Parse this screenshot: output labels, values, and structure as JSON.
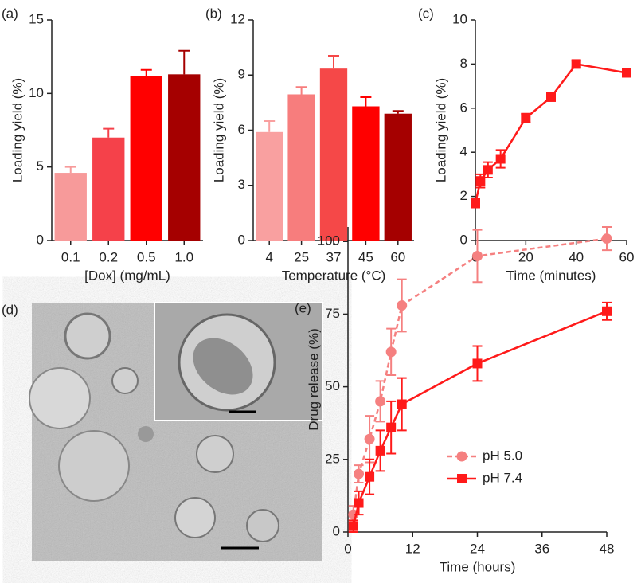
{
  "chart_data": [
    {
      "type": "bar",
      "panel": "(a)",
      "xlabel": "[Dox] (mg/mL)",
      "ylabel": "Loading yield (%)",
      "categories": [
        "0.1",
        "0.2",
        "0.5",
        "1.0"
      ],
      "values": [
        4.6,
        7.0,
        11.2,
        11.3
      ],
      "errors": [
        0.4,
        0.6,
        0.4,
        1.6
      ],
      "colors": [
        "#f79a9a",
        "#f5414a",
        "#ff0000",
        "#a50000"
      ],
      "ylim": [
        0,
        15
      ],
      "yticks": [
        0,
        5,
        10,
        15
      ]
    },
    {
      "type": "bar",
      "panel": "(b)",
      "xlabel": "Temperature (°C)",
      "ylabel": "Loading yield (%)",
      "categories": [
        "4",
        "25",
        "37",
        "45",
        "60"
      ],
      "values": [
        5.9,
        7.95,
        9.35,
        7.3,
        6.9
      ],
      "errors": [
        0.6,
        0.4,
        0.7,
        0.5,
        0.15
      ],
      "colors": [
        "#f9a0a0",
        "#f77d7d",
        "#f54848",
        "#ff0000",
        "#a50000"
      ],
      "ylim": [
        0,
        12
      ],
      "yticks": [
        0,
        3,
        6,
        9,
        12
      ]
    },
    {
      "type": "line",
      "panel": "(c)",
      "xlabel": "Time (minutes)",
      "ylabel": "Loading yield (%)",
      "x": [
        0,
        2,
        5,
        10,
        20,
        30,
        40,
        60
      ],
      "series": [
        {
          "color": "#ff1a1a",
          "marker": "square",
          "linestyle": "solid",
          "values": [
            1.7,
            2.7,
            3.2,
            3.7,
            5.55,
            6.5,
            8.0,
            7.6
          ],
          "errors": [
            0.2,
            0.3,
            0.35,
            0.4,
            0.2,
            0.15,
            0.15,
            0.1
          ]
        }
      ],
      "xlim": [
        0,
        60
      ],
      "xticks": [
        0,
        20,
        40,
        60
      ],
      "ylim": [
        0,
        10
      ],
      "yticks": [
        0,
        2,
        4,
        6,
        8,
        10
      ]
    },
    {
      "type": "image",
      "panel": "(d)"
    },
    {
      "type": "line",
      "panel": "(e)",
      "xlabel": "Time (hours)",
      "ylabel": "Drug release (%)",
      "legend": "lower right",
      "x": [
        1,
        2,
        4,
        6,
        8,
        10,
        24,
        48
      ],
      "series": [
        {
          "name": "pH 5.0",
          "color": "#f58080",
          "marker": "circle",
          "linestyle": "dashed",
          "values": [
            6,
            20,
            32,
            45,
            62,
            78,
            95,
            101
          ],
          "errors": [
            3,
            3,
            8,
            7,
            8,
            9,
            9,
            4
          ]
        },
        {
          "name": "pH 7.4",
          "color": "#ff1a1a",
          "marker": "square",
          "linestyle": "solid",
          "values": [
            2,
            10,
            19,
            28,
            36,
            44,
            58,
            76
          ],
          "errors": [
            2,
            4,
            6,
            7,
            9,
            9,
            6,
            3
          ]
        }
      ],
      "xlim": [
        0,
        48
      ],
      "xticks": [
        0,
        12,
        24,
        36,
        48
      ],
      "ylim": [
        0,
        105
      ],
      "yticks": [
        0,
        25,
        50,
        75,
        100
      ]
    }
  ]
}
